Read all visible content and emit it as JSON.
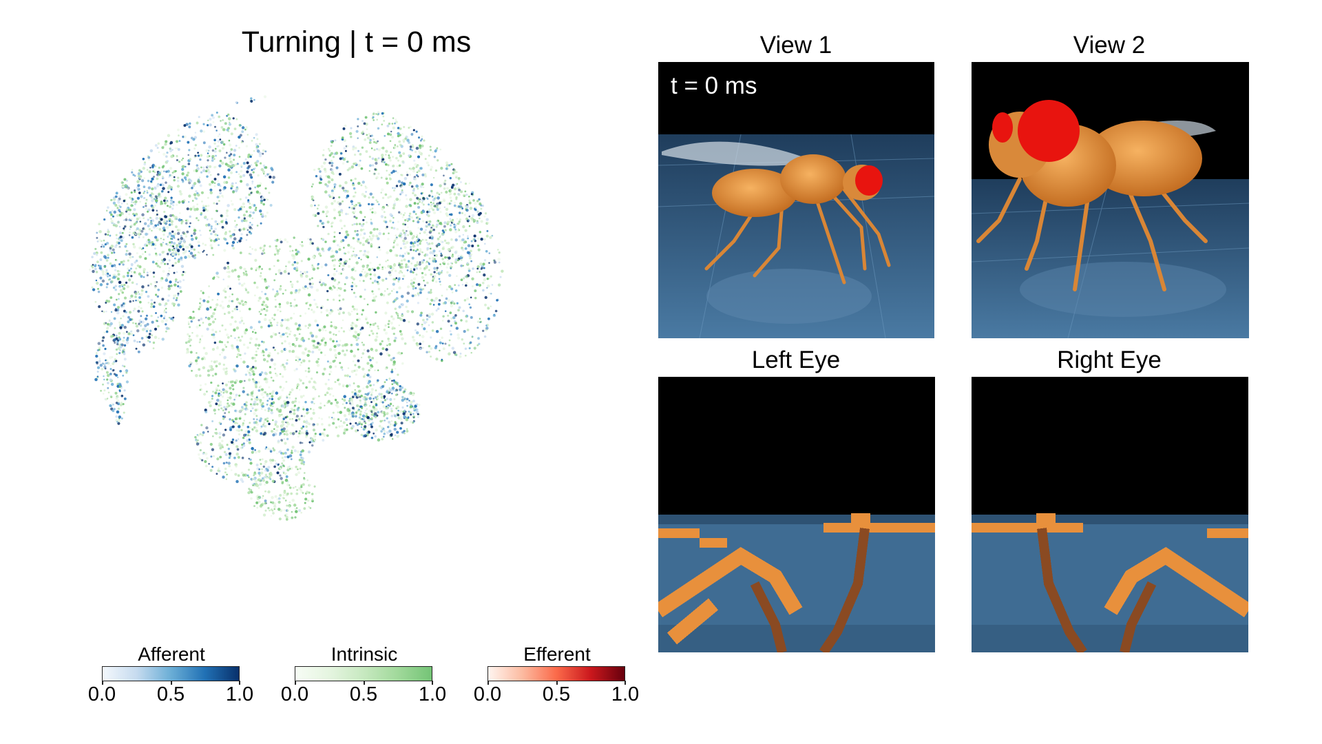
{
  "figure": {
    "title": "Turning | t = 0 ms"
  },
  "colorbars": [
    {
      "id": "afferent",
      "label": "Afferent",
      "ticks": [
        "0.0",
        "0.5",
        "1.0"
      ],
      "colors": [
        "#f4f8fc",
        "#c6dbef",
        "#6baed6",
        "#2171b5",
        "#08306b"
      ]
    },
    {
      "id": "intrinsic",
      "label": "Intrinsic",
      "ticks": [
        "0.0",
        "0.5",
        "1.0"
      ],
      "colors": [
        "#f7fcf5",
        "#e5f5e0",
        "#c7e9c0",
        "#a1d99b",
        "#74c476"
      ]
    },
    {
      "id": "efferent",
      "label": "Efferent",
      "ticks": [
        "0.0",
        "0.5",
        "1.0"
      ],
      "colors": [
        "#fff5f0",
        "#fcbba1",
        "#fb6a4a",
        "#cb181d",
        "#67000d"
      ]
    }
  ],
  "panels": {
    "view1": {
      "title": "View 1",
      "time_label": "t = 0 ms"
    },
    "view2": {
      "title": "View 2"
    },
    "left_eye": {
      "title": "Left Eye"
    },
    "right_eye": {
      "title": "Right Eye"
    }
  },
  "colors": {
    "floor_blue": "#3f6c93",
    "fly_orange": "#e8903c",
    "eye_red": "#e8140f"
  }
}
